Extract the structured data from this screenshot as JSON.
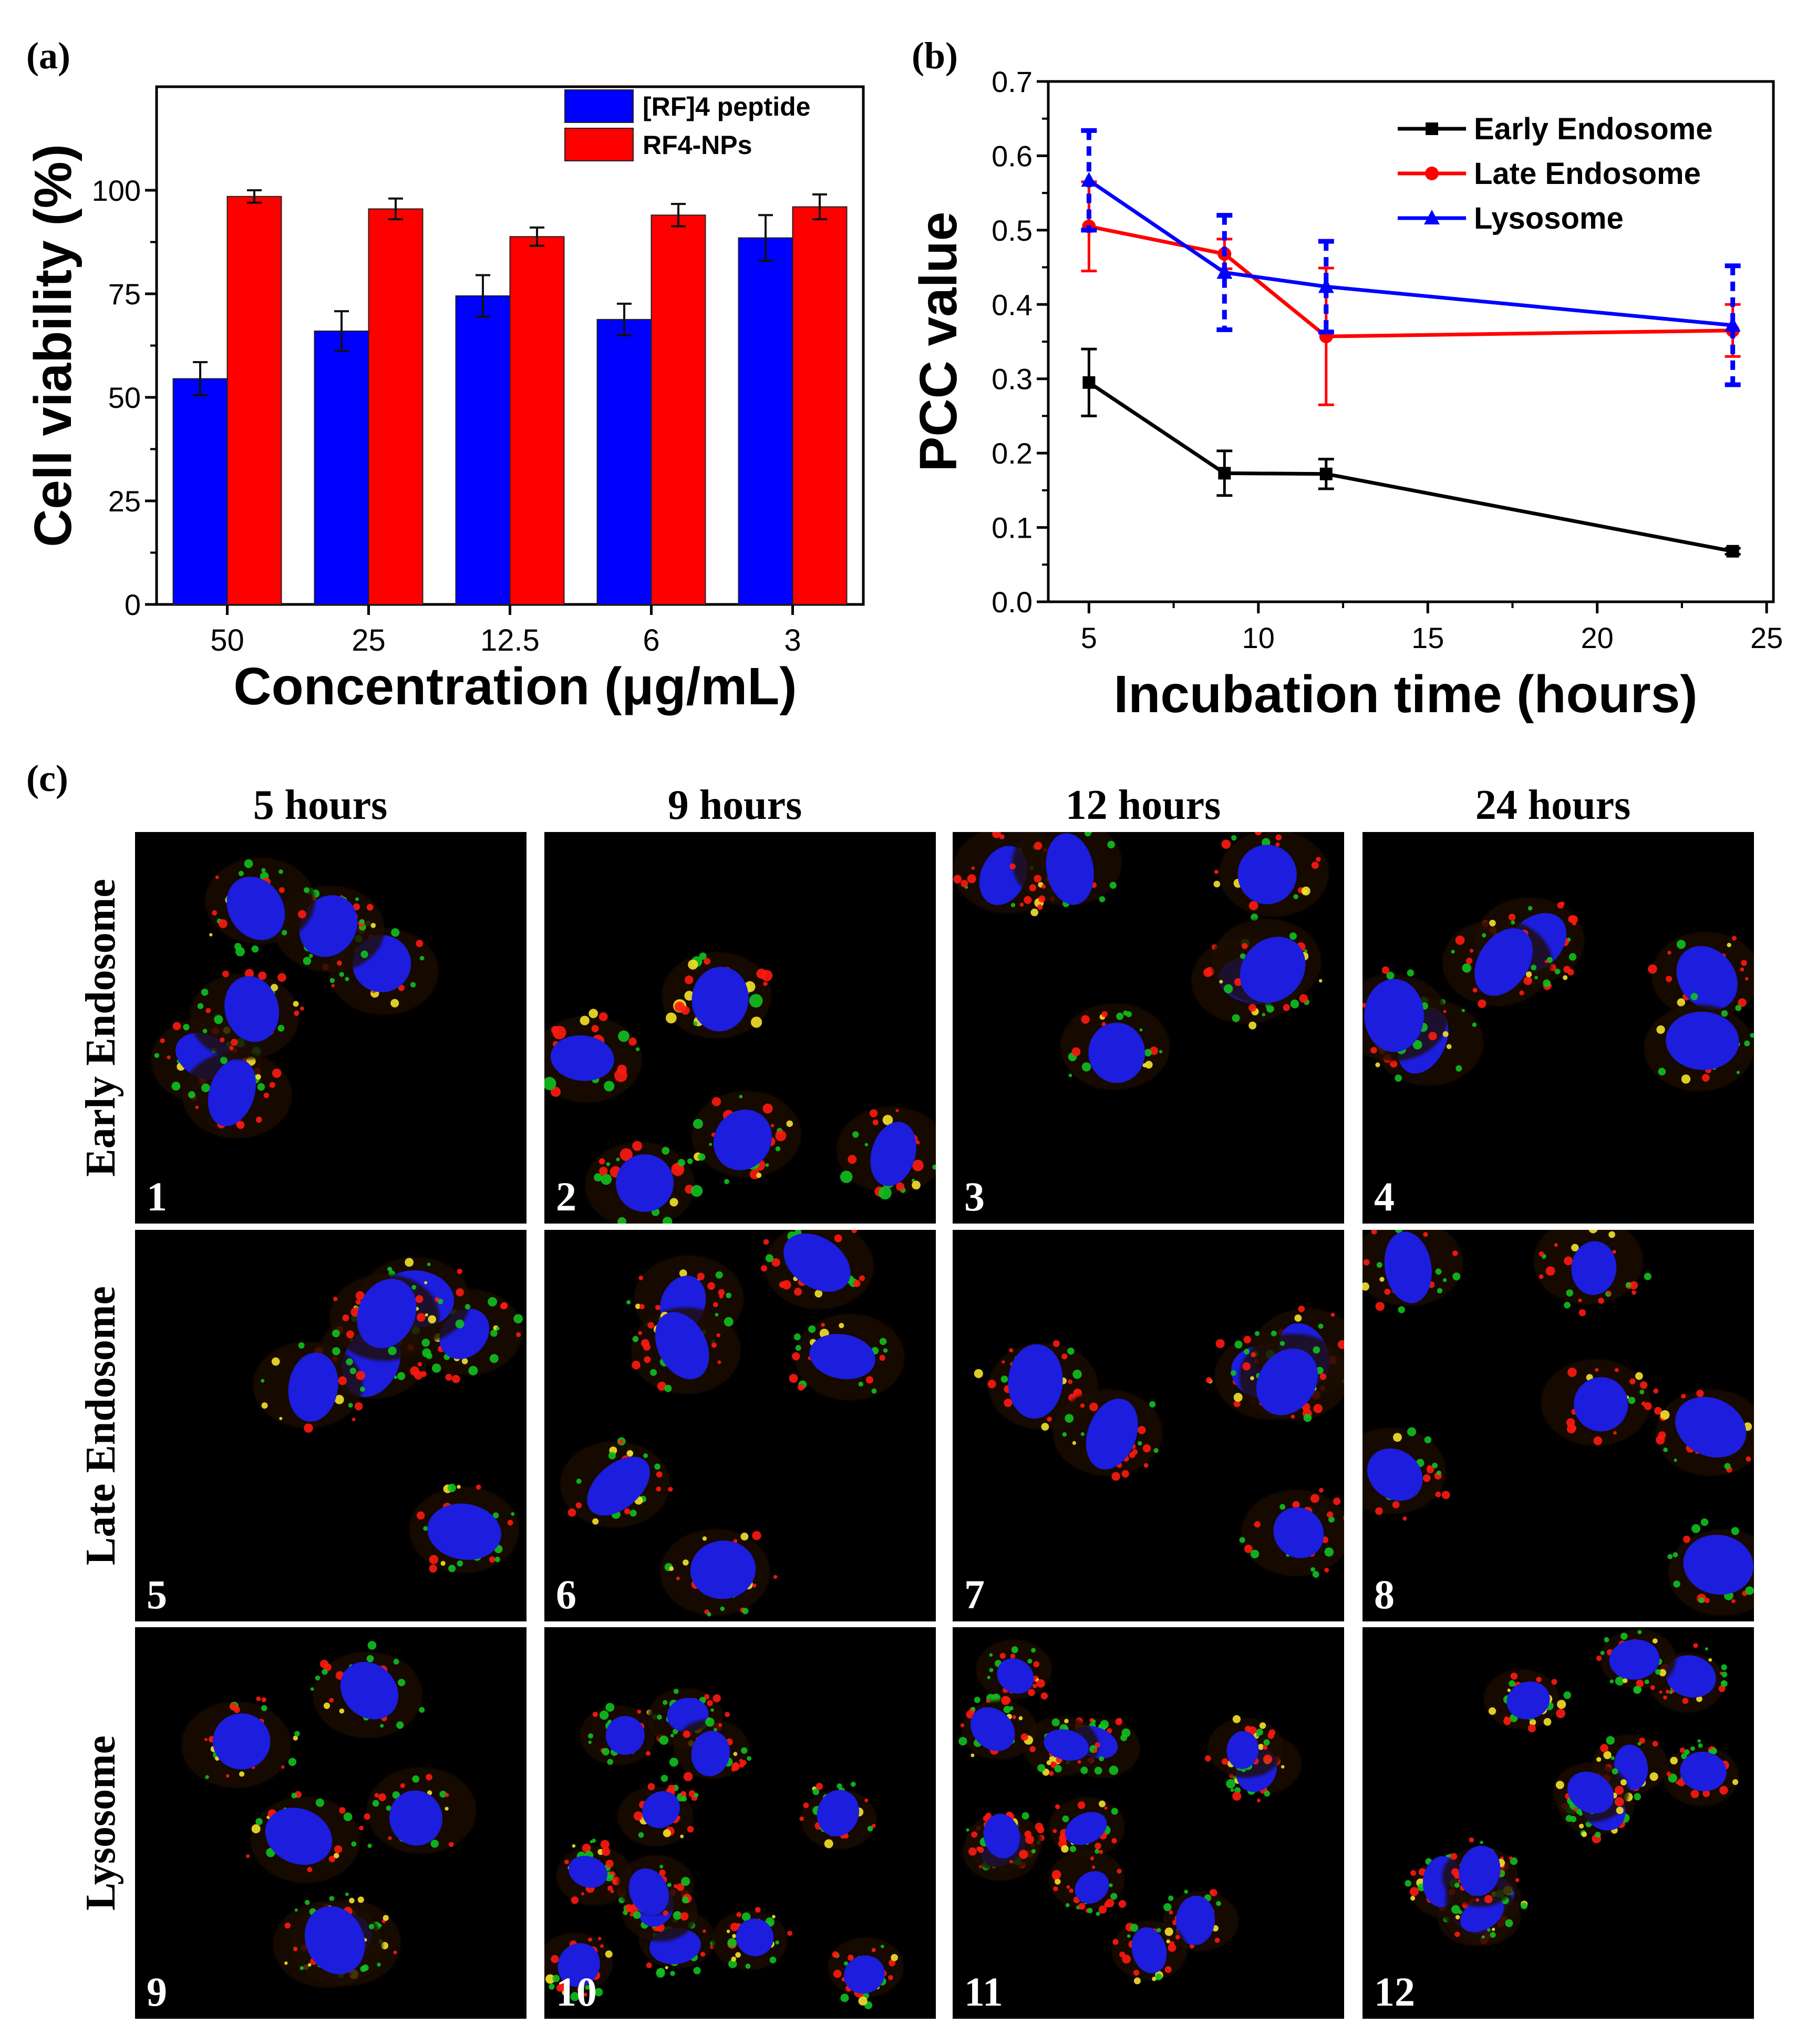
{
  "panels": {
    "a": {
      "letter": "(a)"
    },
    "b": {
      "letter": "(b)"
    },
    "c": {
      "letter": "(c)"
    }
  },
  "chart_data": [
    {
      "type": "bar",
      "categories": [
        "50",
        "25",
        "12.5",
        "6",
        "3"
      ],
      "series": [
        {
          "name": "[RF]4 peptide",
          "color": "#0000ff",
          "values": [
            54.5,
            66.0,
            74.5,
            68.8,
            88.5
          ],
          "errors": [
            4.0,
            4.8,
            5.0,
            3.8,
            5.5
          ]
        },
        {
          "name": "RF4-NPs",
          "color": "#ff0000",
          "values": [
            98.5,
            95.5,
            88.8,
            94.0,
            96.0
          ],
          "errors": [
            1.5,
            2.5,
            2.2,
            2.7,
            3.0
          ]
        }
      ],
      "xlabel": "Concentration (μg/mL)",
      "ylabel": "Cell viability (%)",
      "ylim": [
        0,
        125
      ],
      "yticks": [
        "0",
        "25",
        "50",
        "75",
        "100"
      ],
      "ytick_values": [
        0,
        25,
        50,
        75,
        100
      ],
      "legend_position": "top-right",
      "grid": false
    },
    {
      "type": "line",
      "series": [
        {
          "name": "Early Endosome",
          "color": "#000000",
          "marker": "square",
          "x": [
            5,
            9,
            12,
            24
          ],
          "y": [
            0.295,
            0.173,
            0.172,
            0.068
          ],
          "errors": [
            0.045,
            0.03,
            0.02,
            0.004
          ],
          "error_style": "solid"
        },
        {
          "name": "Late Endosome",
          "color": "#ff0000",
          "marker": "circle",
          "x": [
            5,
            9,
            12,
            24
          ],
          "y": [
            0.505,
            0.468,
            0.357,
            0.365
          ],
          "errors": [
            0.06,
            0.02,
            0.092,
            0.035
          ],
          "error_style": "solid"
        },
        {
          "name": "Lysosome",
          "color": "#0000ff",
          "marker": "triangle",
          "x": [
            5,
            9,
            12,
            24
          ],
          "y": [
            0.567,
            0.443,
            0.424,
            0.372
          ],
          "errors": [
            0.067,
            0.077,
            0.061,
            0.08
          ],
          "error_style": "dashed"
        }
      ],
      "xlabel": "Incubation time (hours)",
      "ylabel": "PCC value",
      "xlim": [
        3.8,
        25.2
      ],
      "ylim": [
        0,
        0.7
      ],
      "xticks": [
        "5",
        "10",
        "15",
        "20",
        "25"
      ],
      "xtick_values": [
        5,
        10,
        15,
        20,
        25
      ],
      "yticks": [
        "0.0",
        "0.1",
        "0.2",
        "0.3",
        "0.4",
        "0.5",
        "0.6",
        "0.7"
      ],
      "ytick_values": [
        0,
        0.1,
        0.2,
        0.3,
        0.4,
        0.5,
        0.6,
        0.7
      ],
      "legend_position": "top-right",
      "grid": false
    }
  ],
  "micrographs": {
    "columns": [
      "5 hours",
      "9 hours",
      "12 hours",
      "24 hours"
    ],
    "rows": [
      "Early Endosome",
      "Late Endosome",
      "Lysosome"
    ],
    "numbers": [
      "1",
      "2",
      "3",
      "4",
      "5",
      "6",
      "7",
      "8",
      "9",
      "10",
      "11",
      "12"
    ],
    "channel_colors": {
      "nucleus": "#1d1ddd",
      "marker": "#10c020",
      "particles": "#ff1a10",
      "overlap": "#f4e22a"
    }
  }
}
